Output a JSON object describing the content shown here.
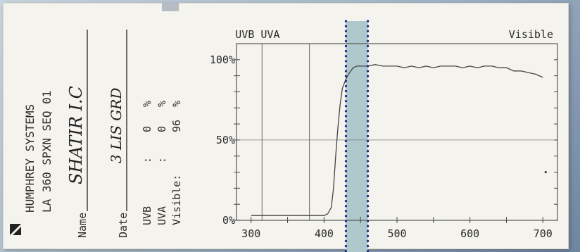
{
  "header": {
    "line1": "HUMPHREY SYSTEMS",
    "line2": "LA 360   SPXN SEQ 01"
  },
  "form": {
    "name_label": "Name",
    "name_value": "SHATIR I.C",
    "date_label": "Date",
    "date_value": "3 LIS GRD"
  },
  "readings": {
    "uvb_label": "UVB",
    "uvb_sep": ":",
    "uvb_value": "0",
    "uva_label": "UVA",
    "uva_sep": ":",
    "uva_value": "0",
    "visible_label": "Visible:",
    "visible_value": "96",
    "unit": "%"
  },
  "icons": {
    "logo": "humphrey-logo-icon"
  },
  "colors": {
    "highlight": "#aec8cb",
    "dots": "#1a2a8c",
    "curve": "#444444",
    "grid": "#777777"
  },
  "chart_data": {
    "type": "line",
    "region_labels": [
      "UVB UVA",
      "Visible"
    ],
    "x_ticks": [
      "300",
      "400",
      "500",
      "600",
      "700"
    ],
    "y_ticks": [
      "0%",
      "50%",
      "100%"
    ],
    "xlim": [
      280,
      720
    ],
    "ylim": [
      0,
      110
    ],
    "region_boundaries": [
      315,
      380
    ],
    "highlight_band": [
      430,
      460
    ],
    "annotation_points": [
      [
        700,
        30
      ]
    ],
    "series": [
      {
        "x": [
          300,
          320,
          340,
          360,
          380,
          390,
          400,
          405,
          410,
          413,
          416,
          419,
          422,
          425,
          430,
          435,
          440,
          445,
          450,
          455,
          460,
          470,
          480,
          490,
          500,
          510,
          520,
          530,
          540,
          550,
          560,
          570,
          580,
          590,
          600,
          610,
          620,
          630,
          640,
          650,
          660,
          670,
          680,
          690,
          700
        ],
        "y": [
          3,
          3,
          3,
          3,
          3,
          3,
          3,
          4,
          8,
          20,
          40,
          58,
          72,
          82,
          88,
          92,
          95,
          96,
          96,
          96,
          96,
          97,
          96,
          96,
          96,
          95,
          96,
          95,
          96,
          95,
          96,
          96,
          96,
          95,
          96,
          95,
          96,
          96,
          95,
          95,
          93,
          93,
          92,
          91,
          89
        ]
      }
    ]
  }
}
